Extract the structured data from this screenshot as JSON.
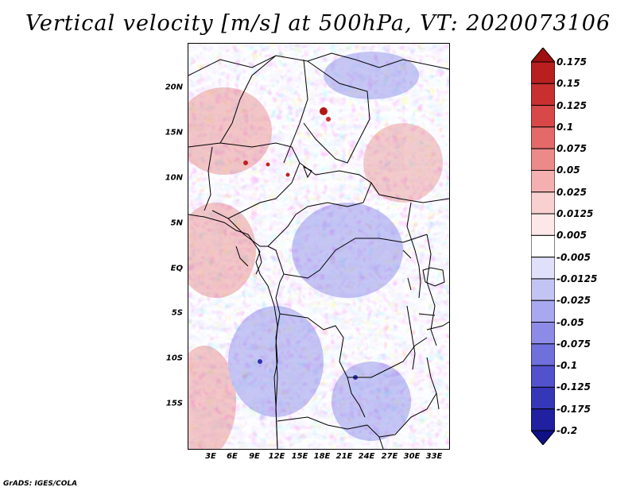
{
  "title": "Vertical velocity [m/s] at 500hPa, VT: 2020073106",
  "credit": "GrADS: IGES/COLA",
  "map": {
    "variable": "Vertical velocity",
    "units": "m/s",
    "level": "500hPa",
    "valid_time": "2020073106",
    "lat_labels": [
      "20N",
      "15N",
      "10N",
      "5N",
      "EQ",
      "5S",
      "10S",
      "15S"
    ],
    "lon_labels": [
      "3E",
      "6E",
      "9E",
      "12E",
      "15E",
      "18E",
      "21E",
      "24E",
      "27E",
      "30E",
      "33E"
    ]
  },
  "colorbar": {
    "labels": [
      "0.175",
      "0.15",
      "0.125",
      "0.1",
      "0.075",
      "0.05",
      "0.025",
      "0.0125",
      "0.005",
      "-0.005",
      "-0.0125",
      "-0.025",
      "-0.05",
      "-0.075",
      "-0.1",
      "-0.125",
      "-0.175",
      "-0.2"
    ],
    "colors": [
      "#a01010",
      "#b82020",
      "#c83030",
      "#d84848",
      "#e46a6a",
      "#ec8a8a",
      "#f4b0b0",
      "#f8d0d0",
      "#fce8e8",
      "#ffffff",
      "#e0e0fa",
      "#c4c4f4",
      "#a8a8ee",
      "#8c8ce6",
      "#7070dc",
      "#5252cc",
      "#3636b8",
      "#2020a0",
      "#101088"
    ]
  }
}
